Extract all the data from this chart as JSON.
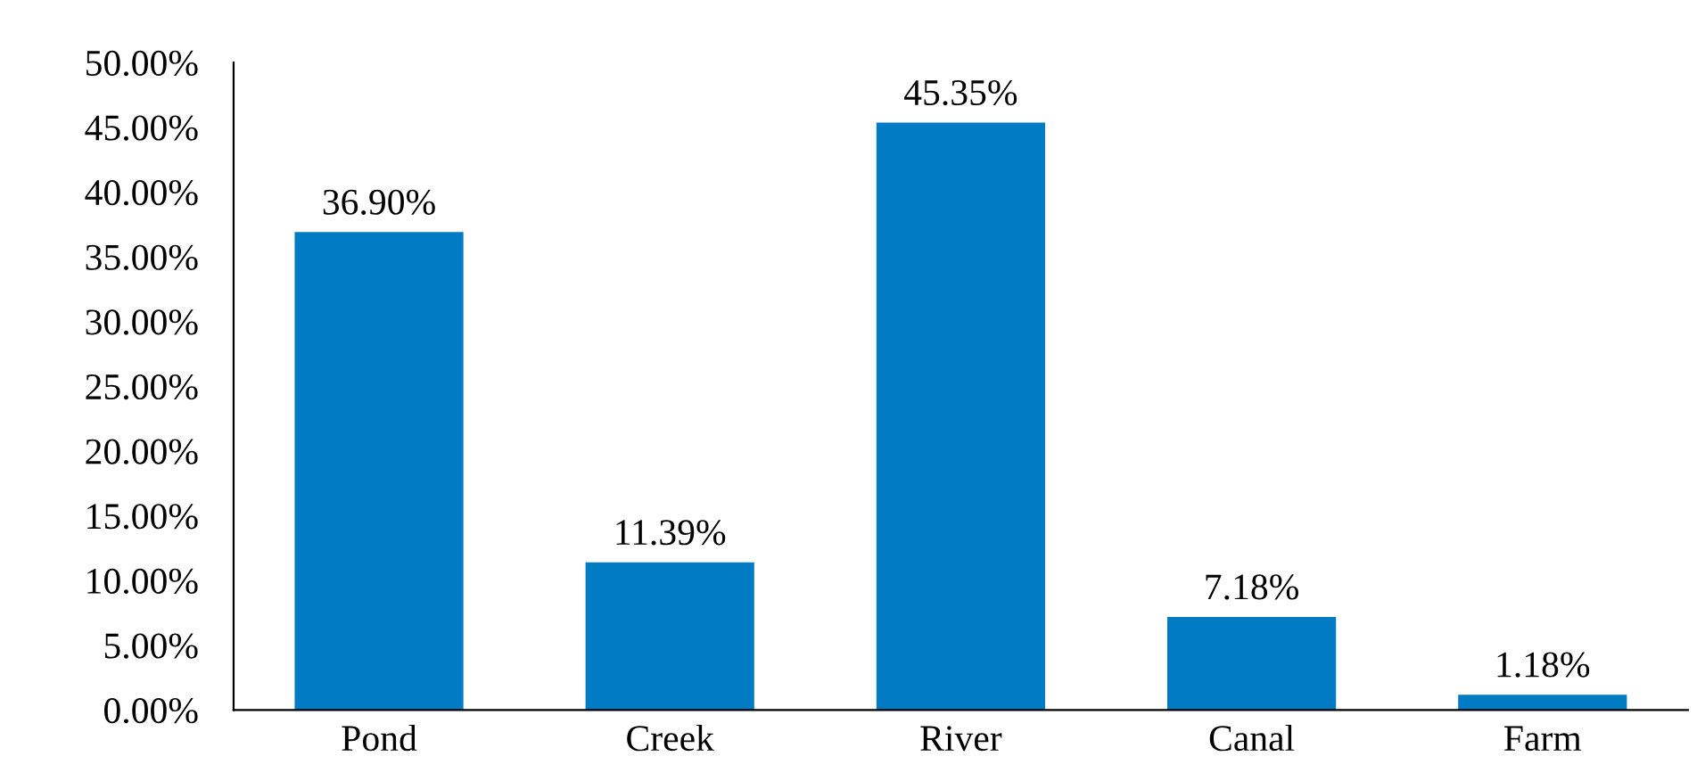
{
  "chart_data": {
    "type": "bar",
    "categories": [
      "Pond",
      "Creek",
      "River",
      "Canal",
      "Farm"
    ],
    "values": [
      36.9,
      11.39,
      45.35,
      7.18,
      1.18
    ],
    "value_labels": [
      "36.90%",
      "11.39%",
      "45.35%",
      "7.18%",
      "1.18%"
    ],
    "color": "#007bc4",
    "ylim": [
      0,
      50
    ],
    "yticks": [
      {
        "value": 0,
        "label": "0.00%"
      },
      {
        "value": 5,
        "label": "5.00%"
      },
      {
        "value": 10,
        "label": "10.00%"
      },
      {
        "value": 15,
        "label": "15.00%"
      },
      {
        "value": 20,
        "label": "20.00%"
      },
      {
        "value": 25,
        "label": "25.00%"
      },
      {
        "value": 30,
        "label": "30.00%"
      },
      {
        "value": 35,
        "label": "35.00%"
      },
      {
        "value": 40,
        "label": "40.00%"
      },
      {
        "value": 45,
        "label": "45.00%"
      },
      {
        "value": 50,
        "label": "50.00%"
      }
    ],
    "grid": false,
    "legend": false
  }
}
